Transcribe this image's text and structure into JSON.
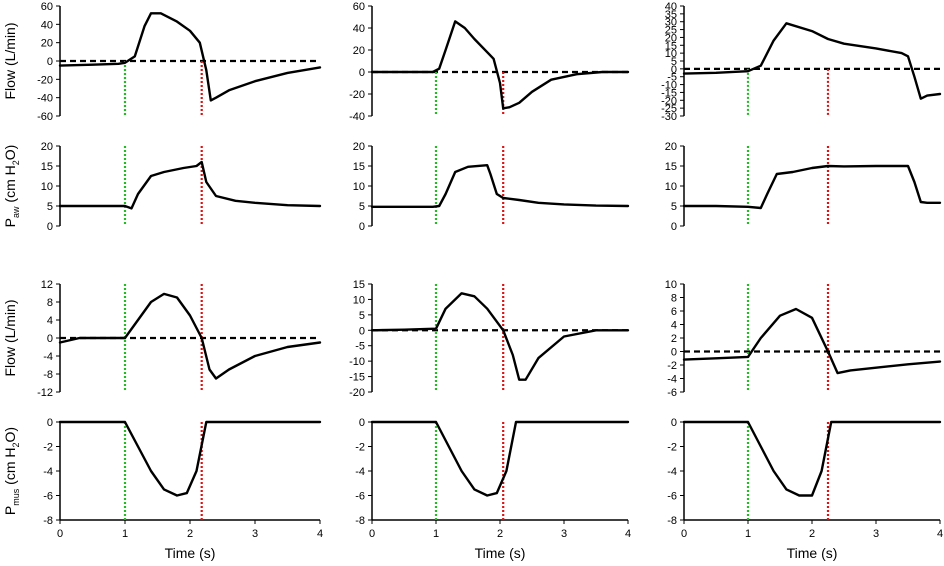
{
  "figure": {
    "xlabel": "Time (s)",
    "xticks": [
      "0",
      "1",
      "2",
      "3",
      "4"
    ],
    "row_labels": [
      {
        "prefix": "Flow (L/min)",
        "sub": "",
        "suffix": ""
      },
      {
        "prefix": "P",
        "sub": "aw",
        "suffix": " (cm H",
        "sub2": "2",
        "suffix2": "O)"
      },
      {
        "prefix": "Flow (L/min)",
        "sub": "",
        "suffix": ""
      },
      {
        "prefix": "P",
        "sub": "mus",
        "suffix": " (cm H",
        "sub2": "2",
        "suffix2": "O)"
      }
    ],
    "colors": {
      "line": "#000000",
      "dashed": "#000000",
      "start_marker": "#22bb22",
      "end_marker": "#dd1111"
    }
  },
  "chart_data": [
    {
      "type": "line",
      "panel": "row1-col1",
      "ylabel": "Flow (L/min)",
      "xlabel": "",
      "xlim": [
        0,
        4
      ],
      "ylim": [
        -60,
        60
      ],
      "yticks": [
        60,
        40,
        20,
        0,
        -20,
        -40,
        -60
      ],
      "zero_dashed": true,
      "markers": [
        1.0,
        2.18
      ],
      "x": [
        0,
        0.5,
        0.9,
        1.0,
        1.15,
        1.3,
        1.4,
        1.55,
        1.8,
        2.0,
        2.15,
        2.25,
        2.32,
        2.4,
        2.6,
        3.0,
        3.5,
        4.0
      ],
      "y": [
        -5,
        -4,
        -3,
        -2,
        5,
        38,
        52,
        52,
        43,
        33,
        20,
        -10,
        -43,
        -40,
        -32,
        -22,
        -13,
        -7
      ]
    },
    {
      "type": "line",
      "panel": "row1-col2",
      "ylabel": "",
      "xlabel": "",
      "xlim": [
        0,
        4
      ],
      "ylim": [
        -40,
        60
      ],
      "yticks": [
        60,
        40,
        20,
        0,
        -20,
        -40
      ],
      "zero_dashed": true,
      "markers": [
        1.0,
        2.05
      ],
      "x": [
        0,
        0.5,
        0.95,
        1.05,
        1.15,
        1.3,
        1.45,
        1.6,
        1.8,
        1.9,
        2.0,
        2.05,
        2.15,
        2.3,
        2.5,
        2.8,
        3.2,
        3.6,
        4.0
      ],
      "y": [
        0,
        0,
        0,
        3,
        20,
        46,
        40,
        30,
        18,
        12,
        -10,
        -33,
        -32,
        -28,
        -18,
        -7,
        -2,
        0,
        0
      ]
    },
    {
      "type": "line",
      "panel": "row1-col3",
      "ylabel": "",
      "xlabel": "",
      "xlim": [
        0,
        4
      ],
      "ylim": [
        -30,
        40
      ],
      "yticks": [
        40,
        35,
        30,
        25,
        20,
        15,
        10,
        5,
        0,
        -5,
        -10,
        -15,
        -20,
        -25,
        -30
      ],
      "zero_dashed": true,
      "markers": [
        1.0,
        2.25
      ],
      "x": [
        0,
        0.5,
        1.0,
        1.2,
        1.4,
        1.6,
        2.0,
        2.25,
        2.5,
        3.0,
        3.4,
        3.5,
        3.6,
        3.7,
        3.8,
        4.0
      ],
      "y": [
        -3,
        -2.5,
        -1.5,
        2,
        18,
        29,
        24,
        19,
        16,
        13,
        10,
        8,
        -5,
        -19,
        -17,
        -16
      ]
    },
    {
      "type": "line",
      "panel": "row2-col1",
      "ylabel": "Paw (cm H2O)",
      "xlabel": "",
      "xlim": [
        0,
        4
      ],
      "ylim": [
        0,
        20
      ],
      "yticks": [
        20,
        15,
        10,
        5,
        0
      ],
      "zero_dashed": false,
      "markers": [
        1.0,
        2.18
      ],
      "x": [
        0,
        0.5,
        0.9,
        1.0,
        1.1,
        1.2,
        1.4,
        1.6,
        1.9,
        2.1,
        2.18,
        2.25,
        2.4,
        2.7,
        3.0,
        3.5,
        4.0
      ],
      "y": [
        5,
        5,
        5,
        5,
        4.4,
        8,
        12.5,
        13.5,
        14.5,
        15,
        16,
        11,
        7.5,
        6.3,
        5.8,
        5.2,
        5
      ]
    },
    {
      "type": "line",
      "panel": "row2-col2",
      "ylabel": "",
      "xlabel": "",
      "xlim": [
        0,
        4
      ],
      "ylim": [
        0,
        20
      ],
      "yticks": [
        20,
        15,
        10,
        5,
        0
      ],
      "zero_dashed": false,
      "markers": [
        1.0,
        2.05
      ],
      "x": [
        0,
        0.5,
        0.95,
        1.05,
        1.15,
        1.3,
        1.5,
        1.8,
        1.85,
        1.95,
        2.05,
        2.3,
        2.6,
        3.0,
        3.5,
        4.0
      ],
      "y": [
        4.8,
        4.8,
        4.8,
        5,
        8,
        13.5,
        14.8,
        15.2,
        13,
        8,
        7,
        6.5,
        5.8,
        5.4,
        5.1,
        5
      ]
    },
    {
      "type": "line",
      "panel": "row2-col3",
      "ylabel": "",
      "xlabel": "",
      "xlim": [
        0,
        4
      ],
      "ylim": [
        0,
        20
      ],
      "yticks": [
        20,
        15,
        10,
        5,
        0
      ],
      "zero_dashed": false,
      "markers": [
        1.0,
        2.25
      ],
      "x": [
        0,
        0.5,
        1.0,
        1.2,
        1.3,
        1.45,
        1.7,
        2.0,
        2.25,
        2.5,
        3.0,
        3.4,
        3.5,
        3.6,
        3.7,
        3.8,
        4.0
      ],
      "y": [
        5,
        5,
        4.8,
        4.5,
        8,
        13,
        13.5,
        14.5,
        15,
        14.9,
        15,
        15,
        15,
        11,
        6,
        5.8,
        5.8
      ]
    },
    {
      "type": "line",
      "panel": "row3-col1",
      "ylabel": "Flow (L/min)",
      "xlabel": "",
      "xlim": [
        0,
        4
      ],
      "ylim": [
        -12,
        12
      ],
      "yticks": [
        12,
        8,
        4,
        0,
        -4,
        -8,
        -12
      ],
      "zero_dashed": true,
      "markers": [
        1.0,
        2.18
      ],
      "x": [
        0,
        0.3,
        0.6,
        1.0,
        1.2,
        1.4,
        1.6,
        1.8,
        2.0,
        2.18,
        2.3,
        2.4,
        2.6,
        3.0,
        3.5,
        4.0
      ],
      "y": [
        -1,
        0,
        0,
        0,
        4,
        8,
        9.8,
        9,
        5,
        0,
        -7,
        -9,
        -7,
        -4,
        -2,
        -1
      ]
    },
    {
      "type": "line",
      "panel": "row3-col2",
      "ylabel": "",
      "xlabel": "",
      "xlim": [
        0,
        4
      ],
      "ylim": [
        -20,
        15
      ],
      "yticks": [
        15,
        10,
        5,
        0,
        -5,
        -10,
        -15,
        -20
      ],
      "zero_dashed": true,
      "markers": [
        1.0,
        2.05
      ],
      "x": [
        0,
        0.5,
        1.0,
        1.15,
        1.4,
        1.6,
        1.8,
        2.05,
        2.2,
        2.3,
        2.4,
        2.6,
        3.0,
        3.5,
        4.0
      ],
      "y": [
        0,
        0.2,
        0.5,
        7,
        12,
        11,
        7,
        0,
        -8,
        -16,
        -16,
        -9,
        -2,
        0,
        0
      ]
    },
    {
      "type": "line",
      "panel": "row3-col3",
      "ylabel": "",
      "xlabel": "",
      "xlim": [
        0,
        4
      ],
      "ylim": [
        -6,
        10
      ],
      "yticks": [
        10,
        8,
        6,
        4,
        2,
        0,
        -2,
        -4,
        -6
      ],
      "zero_dashed": true,
      "markers": [
        1.0,
        2.25
      ],
      "x": [
        0,
        0.5,
        1.0,
        1.2,
        1.5,
        1.75,
        2.0,
        2.25,
        2.4,
        2.6,
        3.0,
        3.5,
        4.0
      ],
      "y": [
        -1.2,
        -1,
        -0.8,
        2,
        5.3,
        6.3,
        5,
        0,
        -3.2,
        -2.8,
        -2.4,
        -1.9,
        -1.5
      ]
    },
    {
      "type": "line",
      "panel": "row4-col1",
      "ylabel": "Pmus (cm H2O)",
      "xlabel": "Time (s)",
      "xlim": [
        0,
        4
      ],
      "ylim": [
        -8,
        0
      ],
      "yticks": [
        0,
        -2,
        -4,
        -6,
        -8
      ],
      "xticks": [
        0,
        1,
        2,
        3,
        4
      ],
      "zero_dashed": false,
      "markers": [
        1.0,
        2.18
      ],
      "x": [
        0,
        0.5,
        1.0,
        1.2,
        1.4,
        1.6,
        1.8,
        1.95,
        2.1,
        2.25,
        2.5,
        3.0,
        3.5,
        4.0
      ],
      "y": [
        0,
        0,
        0,
        -2,
        -4,
        -5.5,
        -6,
        -5.8,
        -4,
        0,
        0,
        0,
        0,
        0
      ]
    },
    {
      "type": "line",
      "panel": "row4-col2",
      "ylabel": "",
      "xlabel": "Time (s)",
      "xlim": [
        0,
        4
      ],
      "ylim": [
        -8,
        0
      ],
      "yticks": [
        0,
        -2,
        -4,
        -6,
        -8
      ],
      "xticks": [
        0,
        1,
        2,
        3,
        4
      ],
      "zero_dashed": false,
      "markers": [
        1.0,
        2.05
      ],
      "x": [
        0,
        0.5,
        1.0,
        1.2,
        1.4,
        1.6,
        1.8,
        1.95,
        2.1,
        2.25,
        2.5,
        3.0,
        3.5,
        4.0
      ],
      "y": [
        0,
        0,
        0,
        -2,
        -4,
        -5.5,
        -6,
        -5.8,
        -4,
        0,
        0,
        0,
        0,
        0
      ]
    },
    {
      "type": "line",
      "panel": "row4-col3",
      "ylabel": "",
      "xlabel": "Time (s)",
      "xlim": [
        0,
        4
      ],
      "ylim": [
        -8,
        0
      ],
      "yticks": [
        0,
        -2,
        -4,
        -6,
        -8
      ],
      "xticks": [
        0,
        1,
        2,
        3,
        4
      ],
      "zero_dashed": false,
      "markers": [
        1.0,
        2.25
      ],
      "x": [
        0,
        0.5,
        1.0,
        1.2,
        1.4,
        1.6,
        1.8,
        2.0,
        2.15,
        2.3,
        2.5,
        3.0,
        3.5,
        4.0
      ],
      "y": [
        0,
        0,
        0,
        -2,
        -4,
        -5.5,
        -6,
        -6,
        -4,
        0,
        0,
        0,
        0,
        0
      ]
    }
  ]
}
